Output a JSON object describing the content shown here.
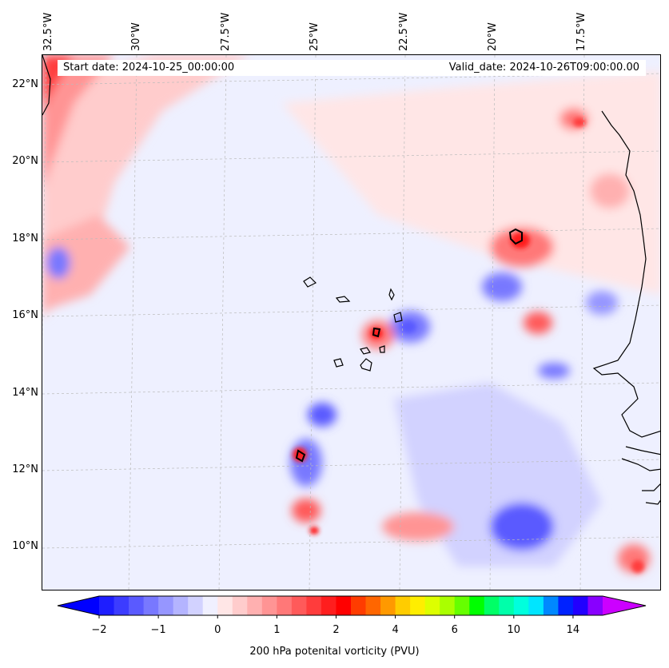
{
  "map": {
    "longitude_labels": [
      "32.5°W",
      "30°W",
      "27.5°W",
      "25°W",
      "22.5°W",
      "20°W",
      "17.5°W"
    ],
    "latitude_labels": [
      "22°N",
      "20°N",
      "18°N",
      "16°N",
      "14°N",
      "12°N",
      "10°N"
    ],
    "start_date": "Start date: 2024-10-25_00:00:00",
    "valid_date": "Valid_date: 2024-10-26T09:00:00.00",
    "background_color": "#eef0ff",
    "coastline_color": "#000000",
    "gridline_color": "#bbbbbb"
  },
  "colorbar": {
    "label": "200 hPa potenital vorticity (PVU)",
    "tick_labels": [
      "−2",
      "−1",
      "0",
      "1",
      "2",
      "4",
      "6",
      "10",
      "14"
    ],
    "colors": [
      "#1e1eff",
      "#3c3cff",
      "#5a5aff",
      "#7878ff",
      "#9696ff",
      "#b4b4ff",
      "#d2d2ff",
      "#f0f0ff",
      "#ffe6e6",
      "#ffcccc",
      "#ffb0b0",
      "#ff9494",
      "#ff7878",
      "#ff5a5a",
      "#ff3c3c",
      "#ff1e1e",
      "#ff0000",
      "#ff3c00",
      "#ff6600",
      "#ff9900",
      "#ffcc00",
      "#ffee00",
      "#ddff00",
      "#aaff00",
      "#66ff00",
      "#00ff00",
      "#00ff66",
      "#00ffaa",
      "#00ffdd",
      "#00e5ff",
      "#0088ff",
      "#0022ff",
      "#2200ff",
      "#8800ff"
    ],
    "under_color": "#0000ff",
    "over_color": "#cc00ff"
  }
}
